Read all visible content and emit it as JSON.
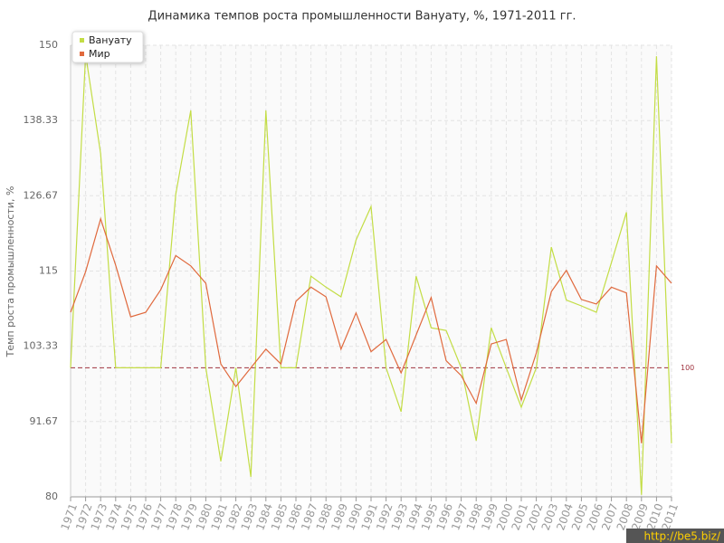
{
  "chart_data": {
    "type": "line",
    "title": "Динамика темпов роста промышленности Вануату, %, 1971-2011 гг.",
    "y_label": "Темп роста промышленности, %",
    "categories": [
      "1971",
      "1972",
      "1973",
      "1974",
      "1975",
      "1976",
      "1977",
      "1978",
      "1979",
      "1980",
      "1981",
      "1982",
      "1983",
      "1984",
      "1985",
      "1986",
      "1987",
      "1988",
      "1989",
      "1990",
      "1991",
      "1992",
      "1993",
      "1994",
      "1995",
      "1996",
      "1997",
      "1998",
      "1999",
      "2000",
      "2001",
      "2002",
      "2003",
      "2004",
      "2005",
      "2006",
      "2007",
      "2008",
      "2009",
      "2010",
      "2011"
    ],
    "series": [
      {
        "name": "Вануату",
        "color": "#c3dd45",
        "values": [
          100,
          148.6,
          133.2,
          100,
          100,
          100,
          100,
          126.9,
          139.9,
          100,
          85.5,
          100,
          83.1,
          139.9,
          100,
          100,
          114.2,
          112.5,
          111,
          119.8,
          125,
          100,
          93.2,
          114.2,
          106.2,
          105.8,
          100,
          88.7,
          106.2,
          100,
          93.9,
          100,
          118.7,
          110.5,
          109.6,
          108.6,
          116.3,
          124.1,
          80.3,
          148.3,
          88.3
        ]
      },
      {
        "name": "Мир",
        "color": "#e0693d",
        "values": [
          108.6,
          114.9,
          123.1,
          115.9,
          107.9,
          108.6,
          112.1,
          117.4,
          115.8,
          113.1,
          100.6,
          97.1,
          100,
          102.9,
          100.6,
          110.3,
          112.5,
          111,
          102.9,
          108.5,
          102.5,
          104.4,
          99.2,
          105.1,
          110.9,
          101.1,
          98.8,
          94.5,
          103.7,
          104.4,
          95,
          102.3,
          111.8,
          115.1,
          110.6,
          109.9,
          112.5,
          111.6,
          88.3,
          115.8,
          113.1
        ]
      }
    ],
    "ylim": [
      80,
      150
    ],
    "yticks": [
      80,
      91.67,
      103.33,
      115,
      126.67,
      138.33,
      150
    ],
    "reference_line": 100,
    "grid": true,
    "legend": "top-left",
    "watermark": "http://be5.biz/"
  }
}
